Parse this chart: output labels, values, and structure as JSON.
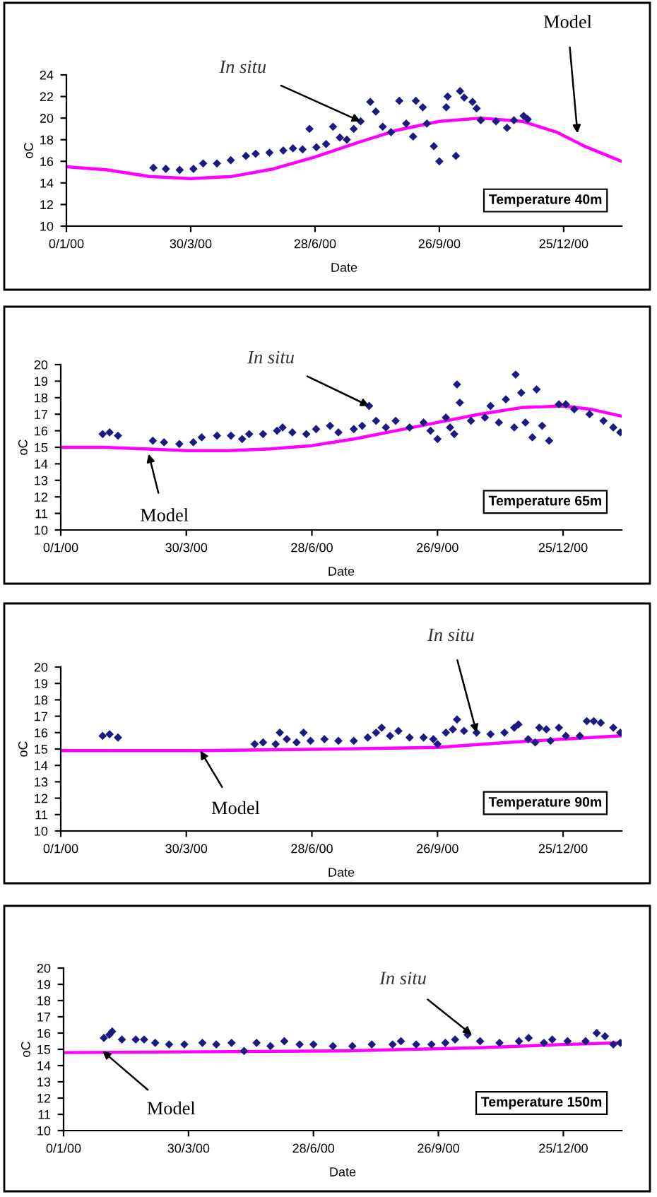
{
  "chart_data": [
    {
      "type": "scatter",
      "title": "Temperature 40m",
      "xlabel": "Date",
      "ylabel": "oC",
      "marker": "diamond",
      "xlim": [
        "1999-12-31",
        "2001-02-05"
      ],
      "ylim": [
        10,
        24
      ],
      "yticks": [
        10,
        12,
        14,
        16,
        18,
        20,
        22,
        24
      ],
      "xticks": [
        {
          "value": "1999-12-31",
          "label": "0/1/00"
        },
        {
          "value": "2000-03-30",
          "label": "30/3/00"
        },
        {
          "value": "2000-06-28",
          "label": "28/6/00"
        },
        {
          "value": "2000-09-26",
          "label": "26/9/00"
        },
        {
          "value": "2000-12-25",
          "label": "25/12/00"
        }
      ],
      "series": [
        {
          "color": "#1a1a80",
          "x": [
            "2000-03-03",
            "2000-03-12",
            "2000-03-22",
            "2000-04-01",
            "2000-04-08",
            "2000-04-18",
            "2000-04-28",
            "2000-05-09",
            "2000-05-16",
            "2000-05-26",
            "2000-06-05",
            "2000-06-12",
            "2000-06-19",
            "2000-06-24",
            "2000-06-29",
            "2000-07-06",
            "2000-07-11",
            "2000-07-16",
            "2000-07-21",
            "2000-07-26",
            "2000-07-31",
            "2000-08-07",
            "2000-08-11",
            "2000-08-16",
            "2000-08-22",
            "2000-08-28",
            "2000-09-02",
            "2000-09-07",
            "2000-09-09",
            "2000-09-14",
            "2000-09-17",
            "2000-09-22",
            "2000-09-26",
            "2000-10-01",
            "2000-10-02",
            "2000-10-08",
            "2000-10-11",
            "2000-10-14",
            "2000-10-20",
            "2000-10-23",
            "2000-10-26",
            "2000-11-06",
            "2000-11-14",
            "2000-11-19",
            "2000-11-26",
            "2000-11-29"
          ],
          "values": [
            15.4,
            15.3,
            15.2,
            15.3,
            15.8,
            15.8,
            16.1,
            16.5,
            16.7,
            16.8,
            17.0,
            17.2,
            17.1,
            19.0,
            17.3,
            17.6,
            19.2,
            18.2,
            18.0,
            19.0,
            19.7,
            21.5,
            20.6,
            19.2,
            18.7,
            21.6,
            19.5,
            18.3,
            21.6,
            21.0,
            19.5,
            17.4,
            16.0,
            21.0,
            22.0,
            16.5,
            22.5,
            21.9,
            21.5,
            20.9,
            19.8,
            19.7,
            19.1,
            19.8,
            20.2,
            19.9
          ]
        },
        {
          "type": "line",
          "marker": "none",
          "line_style": "solid",
          "color": "#ff00ff",
          "x": [
            "1999-12-31",
            "2000-01-30",
            "2000-02-29",
            "2000-03-30",
            "2000-04-29",
            "2000-05-29",
            "2000-06-28",
            "2000-07-28",
            "2000-08-27",
            "2000-09-26",
            "2000-10-26",
            "2000-11-25",
            "2000-12-20",
            "2001-01-09",
            "2001-02-05"
          ],
          "values": [
            15.5,
            15.2,
            14.6,
            14.4,
            14.6,
            15.3,
            16.4,
            17.7,
            18.9,
            19.7,
            20.0,
            19.7,
            18.7,
            17.4,
            16.0
          ]
        }
      ],
      "annotations": [
        {
          "text": "In situ",
          "x": "2000-07-31",
          "y": 19.7
        },
        {
          "text": "Model",
          "x": "2001-01-04",
          "y": 18.6
        }
      ]
    },
    {
      "type": "scatter",
      "title": "Temperature 65m",
      "xlabel": "Date",
      "ylabel": "oC",
      "marker": "diamond",
      "xlim": [
        "1999-12-31",
        "2001-02-05"
      ],
      "ylim": [
        10,
        20
      ],
      "yticks": [
        10,
        11,
        12,
        13,
        14,
        15,
        16,
        17,
        18,
        19,
        20
      ],
      "xticks": [
        {
          "value": "1999-12-31",
          "label": "0/1/00"
        },
        {
          "value": "2000-03-30",
          "label": "30/3/00"
        },
        {
          "value": "2000-06-28",
          "label": "28/6/00"
        },
        {
          "value": "2000-09-26",
          "label": "26/9/00"
        },
        {
          "value": "2000-12-25",
          "label": "25/12/00"
        }
      ],
      "series": [
        {
          "color": "#1a1a80",
          "x": [
            "2000-01-30",
            "2000-02-04",
            "2000-02-10",
            "2000-03-06",
            "2000-03-14",
            "2000-03-25",
            "2000-04-04",
            "2000-04-10",
            "2000-04-21",
            "2000-05-01",
            "2000-05-09",
            "2000-05-14",
            "2000-05-24",
            "2000-06-03",
            "2000-06-07",
            "2000-06-14",
            "2000-06-24",
            "2000-07-01",
            "2000-07-11",
            "2000-07-17",
            "2000-07-28",
            "2000-08-03",
            "2000-08-08",
            "2000-08-13",
            "2000-08-20",
            "2000-08-27",
            "2000-09-06",
            "2000-09-16",
            "2000-09-21",
            "2000-09-26",
            "2000-10-02",
            "2000-10-05",
            "2000-10-08",
            "2000-10-10",
            "2000-10-12",
            "2000-10-20",
            "2000-10-30",
            "2000-11-03",
            "2000-11-09",
            "2000-11-14",
            "2000-11-20",
            "2000-11-21",
            "2000-11-25",
            "2000-11-28",
            "2000-12-03",
            "2000-12-06",
            "2000-12-10",
            "2000-12-15",
            "2000-12-22",
            "2000-12-27",
            "2001-01-02",
            "2001-01-13",
            "2001-01-23",
            "2001-01-30",
            "2001-02-04"
          ],
          "values": [
            15.8,
            15.9,
            15.7,
            15.4,
            15.3,
            15.2,
            15.3,
            15.6,
            15.7,
            15.7,
            15.5,
            15.8,
            15.8,
            16.0,
            16.2,
            15.9,
            15.8,
            16.1,
            16.3,
            15.9,
            16.1,
            16.3,
            17.5,
            16.6,
            16.2,
            16.6,
            16.2,
            16.5,
            16.0,
            15.5,
            16.8,
            16.2,
            15.8,
            18.8,
            17.7,
            16.6,
            16.8,
            17.5,
            16.5,
            17.9,
            16.2,
            19.4,
            18.3,
            16.5,
            15.6,
            18.5,
            16.3,
            15.4,
            17.6,
            17.6,
            17.3,
            17.0,
            16.6,
            16.2,
            15.9
          ]
        },
        {
          "type": "line",
          "marker": "none",
          "line_style": "solid",
          "color": "#ff00ff",
          "x": [
            "1999-12-31",
            "2000-01-30",
            "2000-02-29",
            "2000-03-30",
            "2000-04-29",
            "2000-05-29",
            "2000-06-28",
            "2000-07-28",
            "2000-08-27",
            "2000-09-26",
            "2000-10-26",
            "2000-11-25",
            "2000-12-25",
            "2001-01-14",
            "2001-02-04"
          ],
          "values": [
            15.0,
            15.0,
            14.9,
            14.8,
            14.8,
            14.9,
            15.1,
            15.5,
            16.0,
            16.5,
            17.0,
            17.4,
            17.5,
            17.3,
            16.9
          ]
        }
      ],
      "annotations": [
        {
          "text": "In situ",
          "x": "2000-08-08",
          "y": 17.5
        },
        {
          "text": "Model",
          "x": "2000-03-03",
          "y": 14.6
        }
      ]
    },
    {
      "type": "scatter",
      "title": "Temperature 90m",
      "xlabel": "Date",
      "ylabel": "oC",
      "marker": "diamond",
      "xlim": [
        "1999-12-31",
        "2001-02-05"
      ],
      "ylim": [
        10,
        20
      ],
      "yticks": [
        10,
        11,
        12,
        13,
        14,
        15,
        16,
        17,
        18,
        19,
        20
      ],
      "xticks": [
        {
          "value": "1999-12-31",
          "label": "0/1/00"
        },
        {
          "value": "2000-03-30",
          "label": "30/3/00"
        },
        {
          "value": "2000-06-28",
          "label": "28/6/00"
        },
        {
          "value": "2000-09-26",
          "label": "26/9/00"
        },
        {
          "value": "2000-12-25",
          "label": "25/12/00"
        }
      ],
      "series": [
        {
          "color": "#1a1a80",
          "x": [
            "2000-01-30",
            "2000-02-04",
            "2000-02-10",
            "2000-05-18",
            "2000-05-24",
            "2000-06-02",
            "2000-06-05",
            "2000-06-10",
            "2000-06-17",
            "2000-06-22",
            "2000-06-27",
            "2000-07-07",
            "2000-07-17",
            "2000-07-28",
            "2000-08-07",
            "2000-08-13",
            "2000-08-17",
            "2000-08-23",
            "2000-08-29",
            "2000-09-06",
            "2000-09-16",
            "2000-09-23",
            "2000-09-26",
            "2000-10-02",
            "2000-10-07",
            "2000-10-10",
            "2000-10-15",
            "2000-10-24",
            "2000-11-03",
            "2000-11-13",
            "2000-11-20",
            "2000-11-23",
            "2000-11-30",
            "2000-12-05",
            "2000-12-08",
            "2000-12-13",
            "2000-12-16",
            "2000-12-22",
            "2000-12-27",
            "2001-01-06",
            "2001-01-11",
            "2001-01-16",
            "2001-01-21",
            "2001-01-30",
            "2001-02-04"
          ],
          "values": [
            15.8,
            15.9,
            15.7,
            15.3,
            15.4,
            15.3,
            16.0,
            15.6,
            15.4,
            16.0,
            15.5,
            15.6,
            15.5,
            15.5,
            15.7,
            16.0,
            16.3,
            15.8,
            16.1,
            15.7,
            15.7,
            15.6,
            15.3,
            16.0,
            16.2,
            16.8,
            16.1,
            16.0,
            15.9,
            16.0,
            16.3,
            16.5,
            15.6,
            15.4,
            16.3,
            16.2,
            15.5,
            16.3,
            15.8,
            15.8,
            16.7,
            16.7,
            16.6,
            16.3,
            16.0
          ]
        },
        {
          "type": "line",
          "marker": "none",
          "line_style": "solid",
          "color": "#ff00ff",
          "x": [
            "1999-12-31",
            "2000-04-09",
            "2000-07-18",
            "2000-09-26",
            "2000-11-15",
            "2000-12-25",
            "2001-02-04"
          ],
          "values": [
            14.9,
            14.9,
            15.0,
            15.1,
            15.4,
            15.6,
            15.8
          ]
        }
      ],
      "annotations": [
        {
          "text": "In situ",
          "x": "2000-10-24",
          "y": 16.0
        },
        {
          "text": "Model",
          "x": "2000-04-09",
          "y": 14.9
        }
      ]
    },
    {
      "type": "scatter",
      "title": "Temperature 150m",
      "xlabel": "Date",
      "ylabel": "oC",
      "marker": "diamond",
      "xlim": [
        "1999-12-31",
        "2001-02-05"
      ],
      "ylim": [
        10,
        20
      ],
      "yticks": [
        10,
        11,
        12,
        13,
        14,
        15,
        16,
        17,
        18,
        19,
        20
      ],
      "xticks": [
        {
          "value": "1999-12-31",
          "label": "0/1/00"
        },
        {
          "value": "2000-03-30",
          "label": "30/3/00"
        },
        {
          "value": "2000-06-28",
          "label": "28/6/00"
        },
        {
          "value": "2000-09-26",
          "label": "26/9/00"
        },
        {
          "value": "2000-12-25",
          "label": "25/12/00"
        }
      ],
      "series": [
        {
          "color": "#1a1a80",
          "x": [
            "2000-01-29",
            "2000-02-02",
            "2000-02-04",
            "2000-02-11",
            "2000-02-21",
            "2000-02-27",
            "2000-03-06",
            "2000-03-16",
            "2000-03-27",
            "2000-04-09",
            "2000-04-19",
            "2000-04-30",
            "2000-05-09",
            "2000-05-18",
            "2000-05-28",
            "2000-06-07",
            "2000-06-18",
            "2000-06-28",
            "2000-07-12",
            "2000-07-26",
            "2000-08-09",
            "2000-08-24",
            "2000-08-30",
            "2000-09-10",
            "2000-09-21",
            "2000-10-01",
            "2000-10-08",
            "2000-10-17",
            "2000-10-26",
            "2000-11-09",
            "2000-11-23",
            "2000-11-30",
            "2000-12-11",
            "2000-12-17",
            "2000-12-28",
            "2001-01-10",
            "2001-01-18",
            "2001-01-24",
            "2001-01-30",
            "2001-02-04"
          ],
          "values": [
            15.7,
            15.9,
            16.1,
            15.6,
            15.6,
            15.6,
            15.4,
            15.3,
            15.3,
            15.4,
            15.3,
            15.4,
            14.9,
            15.4,
            15.2,
            15.5,
            15.3,
            15.3,
            15.2,
            15.2,
            15.3,
            15.3,
            15.5,
            15.3,
            15.3,
            15.4,
            15.6,
            15.9,
            15.5,
            15.4,
            15.5,
            15.7,
            15.4,
            15.6,
            15.5,
            15.5,
            16.0,
            15.8,
            15.3,
            15.4
          ]
        },
        {
          "type": "line",
          "marker": "none",
          "line_style": "solid",
          "color": "#ff00ff",
          "x": [
            "1999-12-31",
            "2000-07-18",
            "2000-10-26",
            "2000-12-25",
            "2001-02-04"
          ],
          "values": [
            14.8,
            14.9,
            15.1,
            15.3,
            15.4
          ]
        }
      ],
      "annotations": [
        {
          "text": "In situ",
          "x": "2000-10-20",
          "y": 15.9
        },
        {
          "text": "Model",
          "x": "2000-01-28",
          "y": 14.9
        }
      ]
    }
  ]
}
